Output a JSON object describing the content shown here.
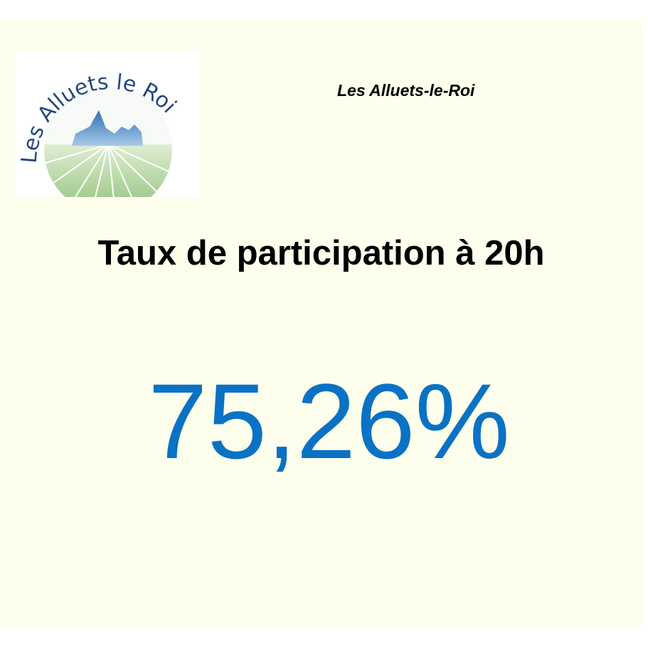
{
  "logo": {
    "text": "Les Alluets le Roi",
    "colors": {
      "text": "#1e3a6e",
      "mountain": "#4f8bc9",
      "field": "#a9cf8f"
    }
  },
  "header": {
    "place": "Les Alluets-le-Roi"
  },
  "main": {
    "title": "Taux de participation à 20h",
    "value": "75,26%"
  },
  "colors": {
    "background": "#fefeec",
    "value": "#0a72c4"
  }
}
